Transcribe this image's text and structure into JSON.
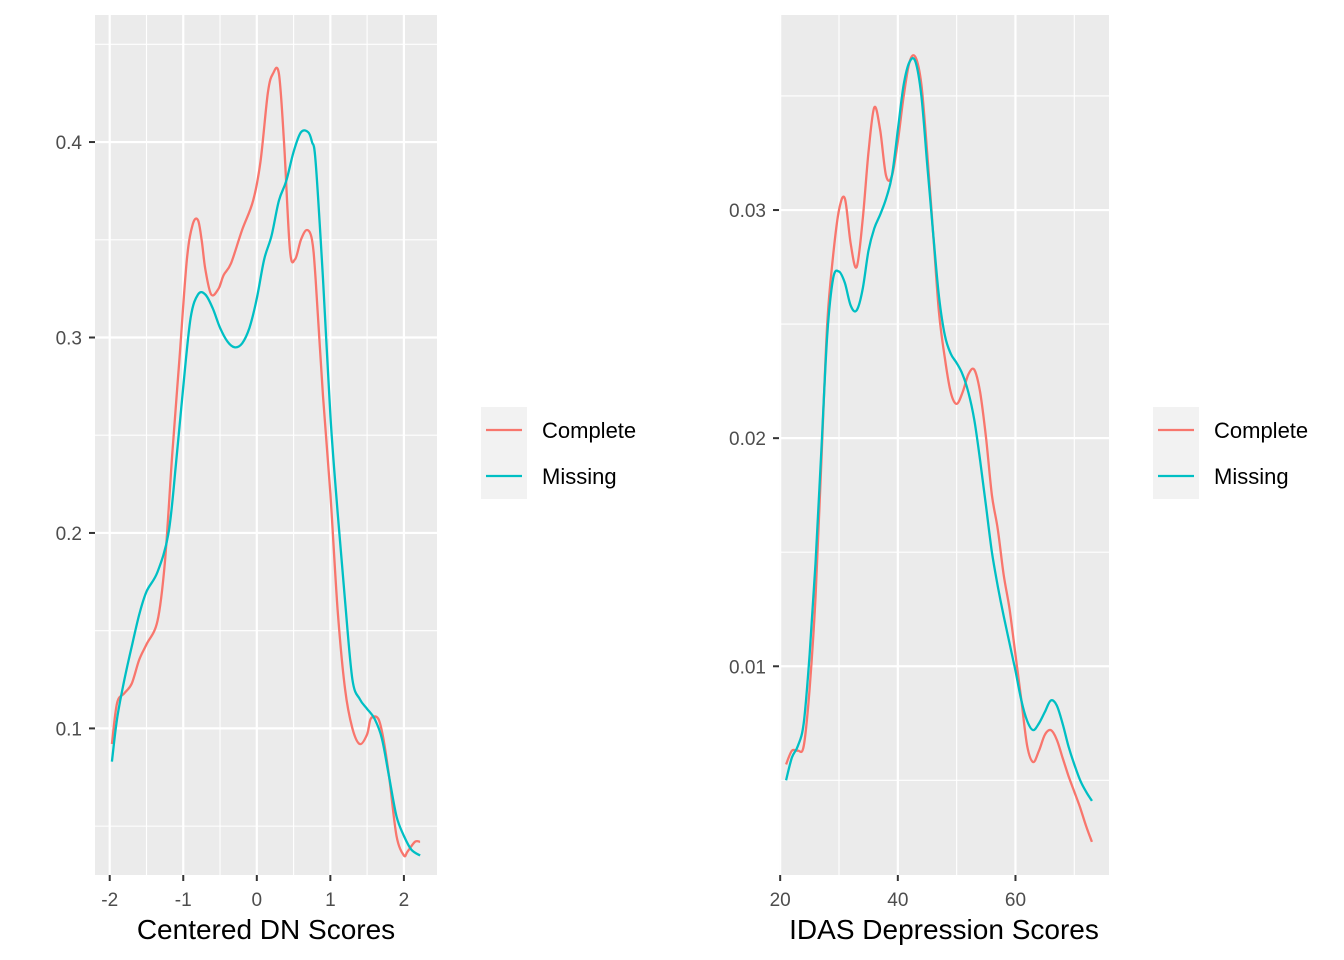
{
  "colors": {
    "panel_bg": "#EBEBEB",
    "grid": "#FFFFFF",
    "complete": "#F8766D",
    "missing": "#00BFC4",
    "legend_key_bg": "#F2F2F2",
    "tick": "#333333"
  },
  "chart_data": [
    {
      "type": "line",
      "subtype": "density",
      "xlabel": "Centered DN Scores",
      "ylabel": "",
      "xlim": [
        -2.2,
        2.45
      ],
      "ylim": [
        0.025,
        0.465
      ],
      "x_ticks": [
        -2,
        -1,
        0,
        1,
        2
      ],
      "x_tick_labels": [
        "-2",
        "-1",
        "0",
        "1",
        "2"
      ],
      "y_ticks": [
        0.1,
        0.2,
        0.3,
        0.4
      ],
      "y_tick_labels": [
        "0.1",
        "0.2",
        "0.3",
        "0.4"
      ],
      "grid": true,
      "legend": {
        "position": "right",
        "entries": [
          "Complete",
          "Missing"
        ]
      },
      "series": [
        {
          "name": "Complete",
          "color": "#F8766D",
          "x": [
            -1.97,
            -1.9,
            -1.8,
            -1.7,
            -1.6,
            -1.5,
            -1.35,
            -1.25,
            -1.15,
            -1.05,
            -0.95,
            -0.87,
            -0.8,
            -0.75,
            -0.7,
            -0.62,
            -0.52,
            -0.45,
            -0.35,
            -0.2,
            -0.05,
            0.05,
            0.15,
            0.22,
            0.3,
            0.37,
            0.45,
            0.52,
            0.6,
            0.68,
            0.75,
            0.8,
            0.9,
            1.0,
            1.1,
            1.2,
            1.3,
            1.4,
            1.5,
            1.55,
            1.65,
            1.72,
            1.8,
            1.9,
            2.0,
            2.05,
            2.15,
            2.22
          ],
          "y": [
            0.092,
            0.113,
            0.118,
            0.123,
            0.135,
            0.143,
            0.155,
            0.185,
            0.24,
            0.29,
            0.34,
            0.358,
            0.36,
            0.35,
            0.335,
            0.322,
            0.325,
            0.332,
            0.338,
            0.355,
            0.37,
            0.39,
            0.425,
            0.435,
            0.435,
            0.4,
            0.345,
            0.34,
            0.35,
            0.355,
            0.35,
            0.33,
            0.27,
            0.22,
            0.16,
            0.12,
            0.1,
            0.092,
            0.097,
            0.105,
            0.105,
            0.095,
            0.075,
            0.045,
            0.035,
            0.037,
            0.042,
            0.042
          ]
        },
        {
          "name": "Missing",
          "color": "#00BFC4",
          "x": [
            -1.97,
            -1.9,
            -1.8,
            -1.7,
            -1.6,
            -1.5,
            -1.35,
            -1.2,
            -1.1,
            -1.0,
            -0.9,
            -0.8,
            -0.7,
            -0.6,
            -0.5,
            -0.4,
            -0.3,
            -0.2,
            -0.1,
            0.0,
            0.1,
            0.2,
            0.3,
            0.4,
            0.5,
            0.6,
            0.7,
            0.75,
            0.8,
            0.9,
            1.0,
            1.1,
            1.2,
            1.3,
            1.4,
            1.5,
            1.6,
            1.7,
            1.8,
            1.9,
            2.0,
            2.1,
            2.22
          ],
          "y": [
            0.083,
            0.105,
            0.125,
            0.142,
            0.158,
            0.17,
            0.18,
            0.2,
            0.235,
            0.275,
            0.31,
            0.322,
            0.322,
            0.315,
            0.305,
            0.298,
            0.295,
            0.297,
            0.305,
            0.32,
            0.34,
            0.352,
            0.37,
            0.38,
            0.395,
            0.405,
            0.405,
            0.4,
            0.39,
            0.33,
            0.26,
            0.21,
            0.165,
            0.125,
            0.115,
            0.11,
            0.105,
            0.095,
            0.075,
            0.055,
            0.045,
            0.038,
            0.035
          ]
        }
      ]
    },
    {
      "type": "line",
      "subtype": "density",
      "xlabel": "IDAS Depression Scores",
      "ylabel": "",
      "xlim": [
        19.8,
        75.9
      ],
      "ylim": [
        0.00085,
        0.03855
      ],
      "x_ticks": [
        20,
        40,
        60
      ],
      "x_tick_labels": [
        "20",
        "40",
        "60"
      ],
      "y_ticks": [
        0.01,
        0.02,
        0.03
      ],
      "y_tick_labels": [
        "0.01",
        "0.02",
        "0.03"
      ],
      "grid": true,
      "legend": {
        "position": "right",
        "entries": [
          "Complete",
          "Missing"
        ]
      },
      "series": [
        {
          "name": "Complete",
          "color": "#F8766D",
          "x": [
            21,
            22,
            23,
            24,
            25,
            26,
            27,
            28,
            29,
            30,
            31,
            32,
            33,
            34,
            35,
            36,
            37,
            38,
            39,
            40,
            41,
            42,
            43,
            44,
            45,
            46,
            47,
            48,
            49,
            50,
            51,
            52,
            53,
            54,
            55,
            56,
            57,
            58,
            59,
            60,
            61,
            62,
            63,
            64,
            65,
            66,
            67,
            68,
            69,
            70,
            71,
            72,
            73
          ],
          "y": [
            0.0057,
            0.0063,
            0.0063,
            0.0065,
            0.009,
            0.013,
            0.019,
            0.025,
            0.028,
            0.03,
            0.0305,
            0.0285,
            0.0275,
            0.0295,
            0.0325,
            0.0345,
            0.0335,
            0.0315,
            0.0315,
            0.033,
            0.035,
            0.0365,
            0.0367,
            0.0355,
            0.0325,
            0.029,
            0.0255,
            0.0235,
            0.022,
            0.0215,
            0.022,
            0.0228,
            0.023,
            0.022,
            0.02,
            0.0175,
            0.016,
            0.014,
            0.0125,
            0.0105,
            0.0085,
            0.0065,
            0.0058,
            0.0063,
            0.007,
            0.0072,
            0.0068,
            0.006,
            0.0052,
            0.0045,
            0.0038,
            0.003,
            0.0023
          ]
        },
        {
          "name": "Missing",
          "color": "#00BFC4",
          "x": [
            21,
            22,
            23,
            24,
            25,
            26,
            27,
            28,
            29,
            30,
            31,
            32,
            33,
            34,
            35,
            36,
            37,
            38,
            39,
            40,
            41,
            42,
            43,
            44,
            45,
            46,
            47,
            48,
            49,
            50,
            51,
            52,
            53,
            54,
            55,
            56,
            57,
            58,
            59,
            60,
            61,
            62,
            63,
            64,
            65,
            66,
            67,
            68,
            69,
            70,
            71,
            72,
            73
          ],
          "y": [
            0.005,
            0.006,
            0.0065,
            0.0075,
            0.0105,
            0.0145,
            0.0195,
            0.0245,
            0.027,
            0.0273,
            0.0268,
            0.0258,
            0.0256,
            0.0265,
            0.0282,
            0.0292,
            0.0298,
            0.0305,
            0.0315,
            0.0335,
            0.0355,
            0.0365,
            0.0365,
            0.035,
            0.032,
            0.029,
            0.0262,
            0.0245,
            0.0237,
            0.0233,
            0.0228,
            0.022,
            0.0208,
            0.019,
            0.017,
            0.015,
            0.0135,
            0.0122,
            0.011,
            0.0098,
            0.0085,
            0.0076,
            0.0072,
            0.0075,
            0.008,
            0.0085,
            0.0083,
            0.0075,
            0.0065,
            0.0057,
            0.005,
            0.0045,
            0.0041
          ]
        }
      ]
    }
  ]
}
